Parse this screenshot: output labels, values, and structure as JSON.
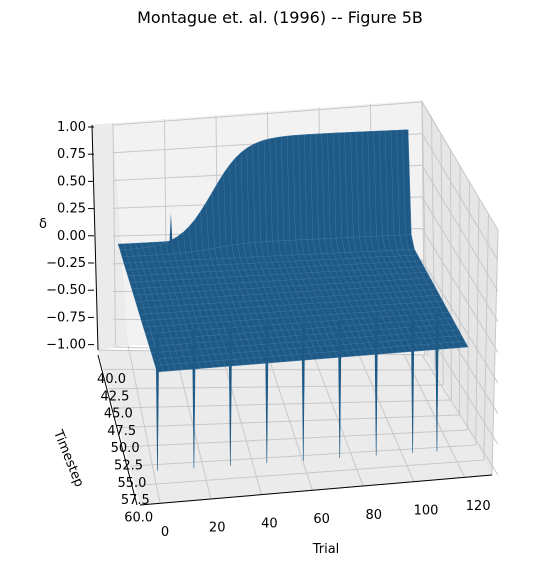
{
  "chart_data": {
    "type": "surface",
    "title": "Montague et. al. (1996) -- Figure 5B",
    "xlabel": "Trial",
    "ylabel": "Timestep",
    "zlabel": "δ",
    "xlim": [
      0,
      125
    ],
    "ylim": [
      40,
      60
    ],
    "zlim": [
      -1.0,
      1.0
    ],
    "xticks": [
      "0",
      "20",
      "40",
      "60",
      "80",
      "100",
      "120"
    ],
    "yticks": [
      "40.0",
      "42.5",
      "45.0",
      "47.5",
      "50.0",
      "52.5",
      "55.0",
      "57.5",
      "60.0"
    ],
    "zticks": [
      "1.00",
      "0.75",
      "0.50",
      "0.25",
      "0.00",
      "−0.25",
      "−0.50",
      "−0.75",
      "−1.00"
    ],
    "grid": true,
    "surface_color": "#1f5a87",
    "description_of_data": {
      "stimulus_timestep_ridge": {
        "timestep": 41,
        "value_start": 0.0,
        "value_end": 1.0,
        "midpoint_trial": 40
      },
      "reward_timestep_values": {
        "timestep": 54,
        "value_start": 1.0,
        "value_end": 0.0
      },
      "omitted_reward_trials": [
        5,
        20,
        35,
        50,
        65,
        80,
        95,
        110,
        120
      ],
      "omitted_reward_dip": -1.0
    }
  }
}
